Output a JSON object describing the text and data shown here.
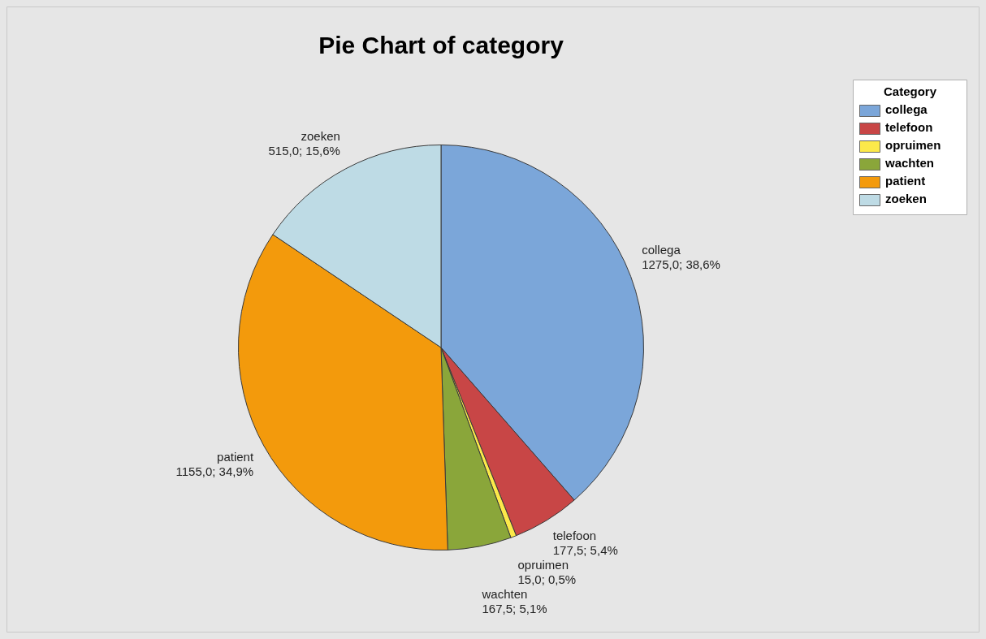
{
  "chart_data": {
    "type": "pie",
    "title": "Pie Chart of category",
    "legend_title": "Category",
    "legend": "top right",
    "categories": [
      "collega",
      "telefoon",
      "opruimen",
      "wachten",
      "patient",
      "zoeken"
    ],
    "values": [
      1275.0,
      177.5,
      15.0,
      167.5,
      1155.0,
      515.0
    ],
    "colors": [
      "#7ba6d9",
      "#c84646",
      "#fce94a",
      "#8aa63a",
      "#f39a0c",
      "#bedbe5"
    ],
    "value_labels": [
      "1275,0; 38,6%",
      "177,5; 5,4%",
      "15,0; 0,5%",
      "167,5; 5,1%",
      "1155,0; 34,9%",
      "515,0; 15,6%"
    ]
  }
}
